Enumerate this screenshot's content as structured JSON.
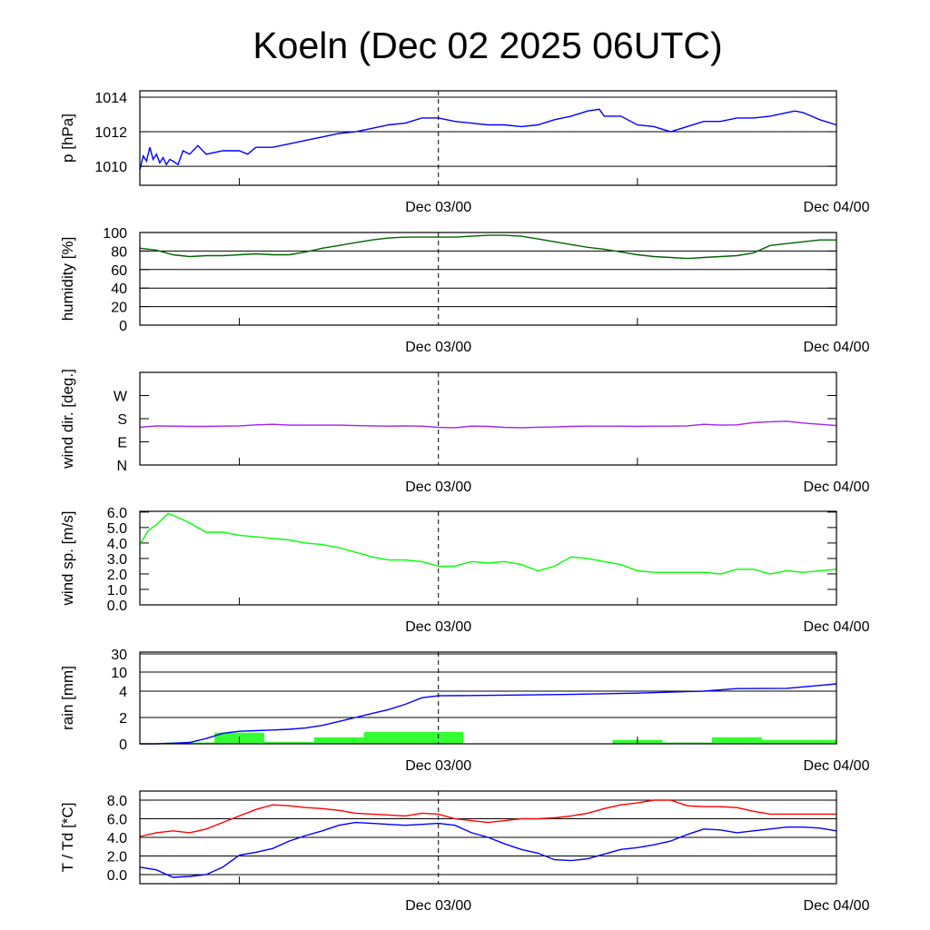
{
  "title": "Koeln (Dec 02 2025 06UTC)",
  "chart_data": {
    "type": "line",
    "title": "Koeln (Dec 02 2025 06UTC)",
    "x_unit": "hours since Dec 02 06UTC",
    "x_range": [
      0,
      42
    ],
    "x_tick_labels": [
      {
        "h": 18,
        "label": "Dec 03/00"
      },
      {
        "h": 42,
        "label": "Dec 04/00"
      }
    ],
    "x_minor_ticks_h": [
      6,
      30
    ],
    "panels": [
      {
        "id": "pressure",
        "ylabel": "p [hPa]",
        "ylim": [
          1008.9,
          1014.37
        ],
        "grid": [
          1010,
          1012,
          1014
        ],
        "tick_labels": [
          {
            "v": 1010,
            "label": "1010"
          },
          {
            "v": 1012,
            "label": "1012"
          },
          {
            "v": 1014,
            "label": "1014"
          }
        ],
        "series": [
          {
            "name": "p",
            "color": "#0000ff",
            "x": [
              0,
              0.2,
              0.4,
              0.6,
              0.8,
              1,
              1.2,
              1.4,
              1.6,
              1.8,
              2,
              2.3,
              2.6,
              3,
              3.5,
              4,
              5,
              6,
              6.5,
              7,
              8,
              9,
              10,
              11,
              12,
              13,
              14,
              15,
              16,
              17,
              18,
              19,
              20,
              21,
              22,
              23,
              24,
              25,
              26,
              27,
              27.7,
              28,
              29,
              30,
              31,
              32,
              33,
              34,
              35,
              36,
              37,
              38,
              39,
              39.5,
              40,
              41,
              42
            ],
            "y": [
              1009.8,
              1010.6,
              1010.3,
              1011.1,
              1010.4,
              1010.7,
              1010.2,
              1010.5,
              1010.1,
              1010.4,
              1010.3,
              1010.1,
              1010.9,
              1010.7,
              1011.2,
              1010.7,
              1010.9,
              1010.9,
              1010.7,
              1011.1,
              1011.1,
              1011.3,
              1011.5,
              1011.7,
              1011.9,
              1012.0,
              1012.2,
              1012.4,
              1012.5,
              1012.8,
              1012.8,
              1012.6,
              1012.5,
              1012.4,
              1012.4,
              1012.3,
              1012.4,
              1012.7,
              1012.9,
              1013.2,
              1013.3,
              1012.9,
              1012.9,
              1012.4,
              1012.3,
              1012.0,
              1012.3,
              1012.6,
              1012.6,
              1012.8,
              1012.8,
              1012.9,
              1013.1,
              1013.2,
              1013.1,
              1012.7,
              1012.4
            ]
          }
        ]
      },
      {
        "id": "humidity",
        "ylabel": "humidity [%]",
        "ylim": [
          0,
          100
        ],
        "grid": [
          20,
          40,
          60,
          80,
          100
        ],
        "tick_labels": [
          {
            "v": 0,
            "label": "0"
          },
          {
            "v": 20,
            "label": "20"
          },
          {
            "v": 40,
            "label": "40"
          },
          {
            "v": 60,
            "label": "60"
          },
          {
            "v": 80,
            "label": "80"
          },
          {
            "v": 100,
            "label": "100"
          }
        ],
        "series": [
          {
            "name": "rh",
            "color": "#006400",
            "x": [
              0,
              1,
              2,
              3,
              4,
              5,
              6,
              7,
              8,
              9,
              10,
              11,
              12,
              13,
              14,
              15,
              16,
              17,
              18,
              19,
              20,
              21,
              22,
              23,
              24,
              25,
              26,
              27,
              28,
              29,
              30,
              31,
              32,
              33,
              34,
              35,
              36,
              37,
              38,
              39,
              40,
              41,
              42
            ],
            "y": [
              83,
              81,
              76,
              74,
              75,
              75,
              76,
              77,
              76,
              76,
              79,
              83,
              86,
              89,
              92,
              94,
              95,
              95,
              95,
              95,
              96,
              97,
              97,
              96,
              93,
              90,
              87,
              84,
              82,
              79,
              76,
              74,
              73,
              72,
              73,
              74,
              75,
              78,
              86,
              88,
              90,
              92,
              92
            ]
          }
        ]
      },
      {
        "id": "winddir",
        "ylabel": "wind dir. [deg.]",
        "ylim": [
          0,
          360
        ],
        "grid": [],
        "tick_labels": [
          {
            "v": 0,
            "label": "N"
          },
          {
            "v": 90,
            "label": "E"
          },
          {
            "v": 180,
            "label": "S"
          },
          {
            "v": 270,
            "label": "W"
          }
        ],
        "series": [
          {
            "name": "dd",
            "color": "#a020f0",
            "x": [
              0,
              1,
              2,
              3,
              4,
              5,
              6,
              7,
              8,
              9,
              10,
              11,
              12,
              13,
              14,
              15,
              16,
              17,
              18,
              19,
              20,
              21,
              22,
              23,
              24,
              25,
              26,
              27,
              28,
              29,
              30,
              31,
              32,
              33,
              34,
              35,
              36,
              37,
              38,
              39,
              40,
              41,
              42
            ],
            "y": [
              147,
              152,
              151,
              150,
              150,
              151,
              152,
              156,
              158,
              155,
              155,
              155,
              155,
              153,
              152,
              151,
              152,
              151,
              146,
              145,
              151,
              150,
              146,
              145,
              147,
              148,
              150,
              151,
              151,
              151,
              150,
              151,
              151,
              152,
              158,
              155,
              156,
              165,
              168,
              170,
              163,
              158,
              153
            ]
          }
        ]
      },
      {
        "id": "windspeed",
        "ylabel": "wind sp. [m/s]",
        "ylim": [
          0,
          6.05
        ],
        "grid": [],
        "tick_labels": [
          {
            "v": 0,
            "label": "0.0"
          },
          {
            "v": 1,
            "label": "1.0"
          },
          {
            "v": 2,
            "label": "2.0"
          },
          {
            "v": 3,
            "label": "3.0"
          },
          {
            "v": 4,
            "label": "4.0"
          },
          {
            "v": 5,
            "label": "5.0"
          },
          {
            "v": 6,
            "label": "6.0"
          }
        ],
        "series": [
          {
            "name": "ff",
            "color": "#00ff00",
            "x": [
              0,
              0.5,
              1,
              1.7,
              2,
              3,
              4,
              5,
              6,
              7,
              8,
              9,
              10,
              11,
              12,
              13,
              14,
              15,
              16,
              17,
              18,
              19,
              20,
              21,
              22,
              23,
              24,
              25,
              26,
              27,
              28,
              29,
              30,
              31,
              32,
              33,
              34,
              35,
              36,
              37,
              38,
              39,
              40,
              41,
              42
            ],
            "y": [
              3.9,
              4.8,
              5.2,
              5.9,
              5.8,
              5.3,
              4.7,
              4.7,
              4.5,
              4.4,
              4.3,
              4.2,
              4.0,
              3.9,
              3.7,
              3.4,
              3.1,
              2.9,
              2.9,
              2.8,
              2.5,
              2.5,
              2.8,
              2.7,
              2.8,
              2.6,
              2.2,
              2.5,
              3.1,
              3.0,
              2.8,
              2.6,
              2.2,
              2.1,
              2.1,
              2.1,
              2.1,
              2.0,
              2.3,
              2.3,
              2.0,
              2.2,
              2.1,
              2.2,
              2.3
            ]
          }
        ]
      },
      {
        "id": "rain",
        "ylabel": "rain [mm]",
        "ylim": [
          0,
          32
        ],
        "grid": [
          2,
          4,
          10,
          30
        ],
        "scale_breaks": [
          0,
          2,
          4,
          10,
          30
        ],
        "tick_labels": [
          {
            "v": 0,
            "label": "0"
          },
          {
            "v": 2,
            "label": "2"
          },
          {
            "v": 4,
            "label": "4"
          },
          {
            "v": 10,
            "label": "10"
          },
          {
            "v": 30,
            "label": "30"
          }
        ],
        "bars": {
          "name": "3h precipitation",
          "color": "#33ff33",
          "width_h": 3,
          "x": [
            3,
            6,
            9,
            12,
            15,
            18,
            21,
            24,
            27,
            30,
            33,
            36,
            39,
            42
          ],
          "y": [
            0.1,
            0.85,
            0.15,
            0.5,
            0.9,
            0.9,
            0,
            0.03,
            0,
            0.3,
            0.1,
            0.5,
            0.3,
            0.3
          ]
        },
        "series": [
          {
            "name": "accumulated",
            "color": "#0000ff",
            "x": [
              0,
              1,
              2,
              3,
              4,
              5,
              6,
              7,
              8,
              9,
              10,
              11,
              12,
              13,
              14,
              15,
              16,
              17,
              18,
              20,
              22,
              26,
              30,
              34,
              36,
              39,
              41,
              42
            ],
            "y": [
              0,
              0,
              0.05,
              0.1,
              0.4,
              0.8,
              0.95,
              1.0,
              1.05,
              1.1,
              1.2,
              1.4,
              1.7,
              2.0,
              2.3,
              2.6,
              3.0,
              3.5,
              3.65,
              3.67,
              3.7,
              3.75,
              3.85,
              4.0,
              4.8,
              4.9,
              5.8,
              6.3
            ]
          }
        ]
      },
      {
        "id": "temperature",
        "ylabel": "T / Td [*C]",
        "ylim": [
          -0.98,
          8.98
        ],
        "grid": [
          0,
          2,
          4,
          6,
          8
        ],
        "tick_labels": [
          {
            "v": 0,
            "label": "0.0"
          },
          {
            "v": 2,
            "label": "2.0"
          },
          {
            "v": 4,
            "label": "4.0"
          },
          {
            "v": 6,
            "label": "6.0"
          },
          {
            "v": 8,
            "label": "8.0"
          }
        ],
        "series": [
          {
            "name": "T",
            "color": "#ff0000",
            "x": [
              0,
              1,
              2,
              3,
              4,
              5,
              6,
              7,
              8,
              9,
              10,
              11,
              12,
              13,
              14,
              15,
              16,
              17,
              18,
              19,
              20,
              21,
              22,
              23,
              24,
              25,
              26,
              27,
              28,
              29,
              30,
              31,
              32,
              33,
              34,
              35,
              36,
              37,
              38,
              39,
              40,
              41,
              42
            ],
            "y": [
              4.1,
              4.5,
              4.7,
              4.5,
              4.9,
              5.6,
              6.3,
              7.0,
              7.5,
              7.4,
              7.2,
              7.1,
              6.9,
              6.6,
              6.5,
              6.4,
              6.3,
              6.6,
              6.5,
              6.0,
              5.8,
              5.6,
              5.8,
              6.0,
              6.0,
              6.1,
              6.3,
              6.6,
              7.1,
              7.5,
              7.7,
              8.0,
              8.0,
              7.4,
              7.3,
              7.3,
              7.2,
              6.8,
              6.5,
              6.5,
              6.5,
              6.5,
              6.5
            ]
          },
          {
            "name": "Td",
            "color": "#0000ff",
            "x": [
              0,
              1,
              2,
              3,
              4,
              5,
              6,
              7,
              8,
              9,
              10,
              11,
              12,
              13,
              14,
              15,
              16,
              17,
              18,
              19,
              20,
              21,
              22,
              23,
              24,
              25,
              26,
              27,
              28,
              29,
              30,
              31,
              32,
              33,
              34,
              35,
              36,
              37,
              38,
              39,
              40,
              41,
              42
            ],
            "y": [
              0.8,
              0.5,
              -0.3,
              -0.2,
              0.0,
              0.8,
              2.1,
              2.4,
              2.8,
              3.6,
              4.2,
              4.7,
              5.3,
              5.6,
              5.5,
              5.4,
              5.3,
              5.4,
              5.5,
              5.3,
              4.5,
              4.0,
              3.3,
              2.7,
              2.3,
              1.6,
              1.5,
              1.7,
              2.2,
              2.7,
              2.9,
              3.2,
              3.6,
              4.3,
              4.9,
              4.8,
              4.5,
              4.7,
              4.9,
              5.1,
              5.1,
              5.0,
              4.7
            ]
          }
        ]
      }
    ]
  }
}
